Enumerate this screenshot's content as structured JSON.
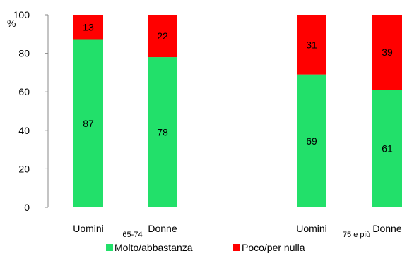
{
  "chart_data": {
    "type": "bar",
    "stacked": true,
    "y_unit_label": "%",
    "ylim": [
      0,
      100
    ],
    "yticks": [
      0,
      20,
      40,
      60,
      80,
      100
    ],
    "grid": false,
    "legend_placement": "bottom",
    "groups": [
      {
        "label": "65-74",
        "categories": [
          "Uomini",
          "Donne"
        ]
      },
      {
        "label": "75 e più",
        "categories": [
          "Uomini",
          "Donne"
        ]
      }
    ],
    "series": [
      {
        "name": "Molto/abbastanza",
        "color": "#22E06A",
        "values": [
          87,
          78,
          69,
          61
        ]
      },
      {
        "name": "Poco/per nulla",
        "color": "#FF0000",
        "values": [
          13,
          22,
          31,
          39
        ]
      }
    ]
  }
}
